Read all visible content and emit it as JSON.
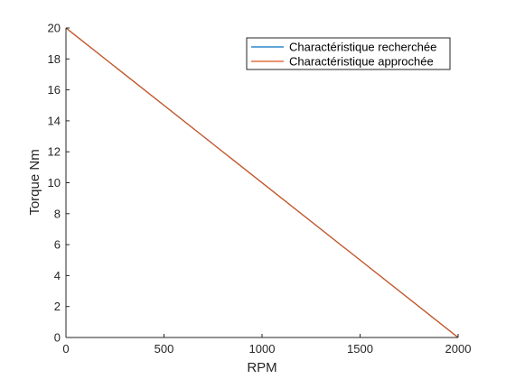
{
  "chart_data": {
    "type": "line",
    "title": "",
    "xlabel": "RPM",
    "ylabel": "Torque Nm",
    "xlim": [
      0,
      2000
    ],
    "ylim": [
      0,
      20
    ],
    "xticks": [
      0,
      500,
      1000,
      1500,
      2000
    ],
    "yticks": [
      0,
      2,
      4,
      6,
      8,
      10,
      12,
      14,
      16,
      18,
      20
    ],
    "grid": false,
    "legend_position": "top-right",
    "series": [
      {
        "name": "Charactéristique recherchée",
        "color": "#0072BD",
        "x": [
          0,
          2000
        ],
        "y": [
          20,
          0
        ]
      },
      {
        "name": "Charactéristique approchée",
        "color": "#D95319",
        "x": [
          0,
          2000
        ],
        "y": [
          20,
          0
        ]
      }
    ]
  }
}
